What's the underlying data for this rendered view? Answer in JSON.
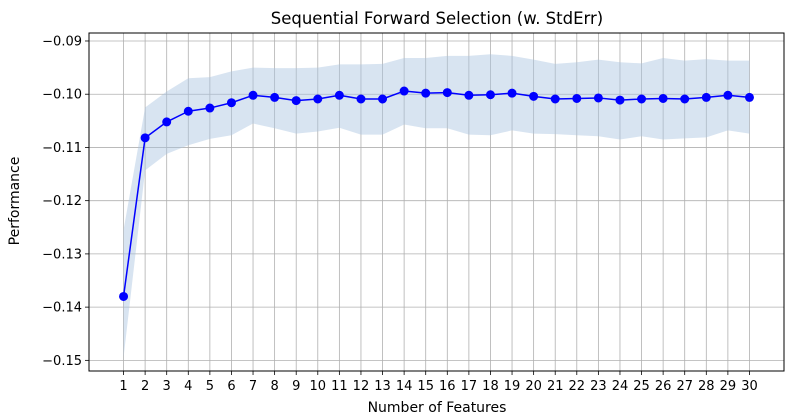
{
  "chart_data": {
    "type": "line",
    "title": "Sequential Forward Selection (w. StdErr)",
    "xlabel": "Number of Features",
    "ylabel": "Performance",
    "x": [
      1,
      2,
      3,
      4,
      5,
      6,
      7,
      8,
      9,
      10,
      11,
      12,
      13,
      14,
      15,
      16,
      17,
      18,
      19,
      20,
      21,
      22,
      23,
      24,
      25,
      26,
      27,
      28,
      29,
      30
    ],
    "x_tick_labels": [
      "1",
      "2",
      "3",
      "4",
      "5",
      "6",
      "7",
      "8",
      "9",
      "10",
      "11",
      "12",
      "13",
      "14",
      "15",
      "16",
      "17",
      "18",
      "19",
      "20",
      "21",
      "22",
      "23",
      "24",
      "25",
      "26",
      "27",
      "28",
      "29",
      "30"
    ],
    "series": [
      {
        "values": [
          -0.138,
          -0.1082,
          -0.1052,
          -0.1032,
          -0.1026,
          -0.1016,
          -0.1002,
          -0.1006,
          -0.1012,
          -0.1009,
          -0.1002,
          -0.1009,
          -0.1009,
          -0.0994,
          -0.0998,
          -0.0997,
          -0.1002,
          -0.1001,
          -0.0998,
          -0.1004,
          -0.1009,
          -0.1008,
          -0.1007,
          -0.1011,
          -0.1009,
          -0.1008,
          -0.1009,
          -0.1006,
          -0.1002,
          -0.1006
        ],
        "stderr_upper": [
          -0.1255,
          -0.1025,
          -0.0995,
          -0.097,
          -0.0968,
          -0.0957,
          -0.095,
          -0.0951,
          -0.0951,
          -0.095,
          -0.0944,
          -0.0944,
          -0.0943,
          -0.0932,
          -0.0932,
          -0.0928,
          -0.0928,
          -0.0925,
          -0.0928,
          -0.0935,
          -0.0943,
          -0.094,
          -0.0935,
          -0.094,
          -0.0942,
          -0.0932,
          -0.0937,
          -0.0934,
          -0.0937,
          -0.0937
        ],
        "stderr_lower": [
          -0.1495,
          -0.1143,
          -0.1112,
          -0.1096,
          -0.1084,
          -0.1077,
          -0.1055,
          -0.1064,
          -0.1074,
          -0.107,
          -0.1063,
          -0.1076,
          -0.1076,
          -0.1057,
          -0.1064,
          -0.1064,
          -0.1076,
          -0.1077,
          -0.1068,
          -0.1074,
          -0.1075,
          -0.1077,
          -0.1079,
          -0.1085,
          -0.1079,
          -0.1085,
          -0.1083,
          -0.1081,
          -0.1068,
          -0.1074
        ],
        "color": "#0000ff",
        "band_color": "#a9c4e0"
      }
    ],
    "ylim": [
      -0.152,
      -0.0885
    ],
    "xlim": [
      -0.6,
      31.6
    ],
    "y_ticks": [
      -0.15,
      -0.14,
      -0.13,
      -0.12,
      -0.11,
      -0.1,
      -0.09
    ],
    "y_tick_labels": [
      "−0.15",
      "−0.14",
      "−0.13",
      "−0.12",
      "−0.11",
      "−0.10",
      "−0.09"
    ],
    "grid": true,
    "legend": "none"
  }
}
